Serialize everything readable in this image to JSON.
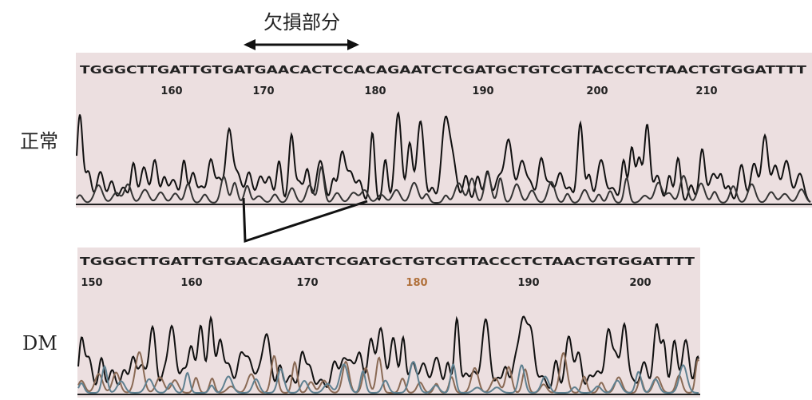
{
  "annotation": {
    "label": "欠損部分"
  },
  "panels": [
    {
      "label": "正常",
      "sequence": "TGGGCTTGATTGTGATGAACACTCCACAGAATCTCGATGCTGTCGTTACCCTCTAACTGTGGATTTT",
      "positions": [
        160,
        170,
        180,
        190,
        200,
        210
      ]
    },
    {
      "label": "DM",
      "sequence": "TGGGCTTGATTGTGACAGAATCTCGATGCTGTCGTTACCCTCTAACTGTGGATTTT",
      "positions": [
        150,
        160,
        170,
        180,
        190,
        200
      ]
    }
  ]
}
